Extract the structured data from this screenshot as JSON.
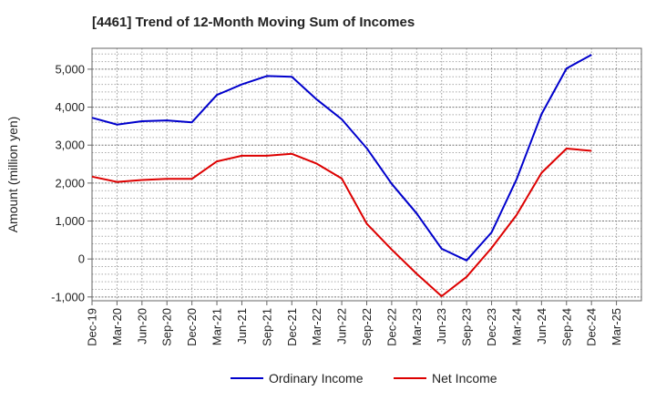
{
  "chart_data": {
    "type": "line",
    "title": "[4461]  Trend of 12-Month Moving Sum of Incomes",
    "xlabel": "",
    "ylabel": "Amount (million yen)",
    "ylim": [
      -1100,
      5550
    ],
    "yticks": [
      -1000,
      0,
      1000,
      2000,
      3000,
      4000,
      5000
    ],
    "ytick_labels": [
      "-1,000",
      "0",
      "1,000",
      "2,000",
      "3,000",
      "4,000",
      "5,000"
    ],
    "categories": [
      "Dec-19",
      "Mar-20",
      "Jun-20",
      "Sep-20",
      "Dec-20",
      "Mar-21",
      "Jun-21",
      "Sep-21",
      "Dec-21",
      "Mar-22",
      "Jun-22",
      "Sep-22",
      "Dec-22",
      "Mar-23",
      "Jun-23",
      "Sep-23",
      "Dec-23",
      "Mar-24",
      "Jun-24",
      "Sep-24",
      "Dec-24",
      "Mar-25"
    ],
    "grid": true,
    "legend_position": "bottom",
    "series": [
      {
        "name": "Ordinary Income",
        "color": "#0000cc",
        "values": [
          3720,
          3540,
          3630,
          3650,
          3600,
          4320,
          4600,
          4820,
          4800,
          4200,
          3680,
          2920,
          1980,
          1200,
          270,
          -40,
          700,
          2100,
          3820,
          5020,
          5380,
          null
        ]
      },
      {
        "name": "Net Income",
        "color": "#dd0000",
        "values": [
          2170,
          2030,
          2080,
          2110,
          2110,
          2570,
          2720,
          2720,
          2770,
          2510,
          2120,
          930,
          250,
          -390,
          -980,
          -470,
          290,
          1160,
          2270,
          2910,
          2850,
          null
        ]
      }
    ]
  }
}
